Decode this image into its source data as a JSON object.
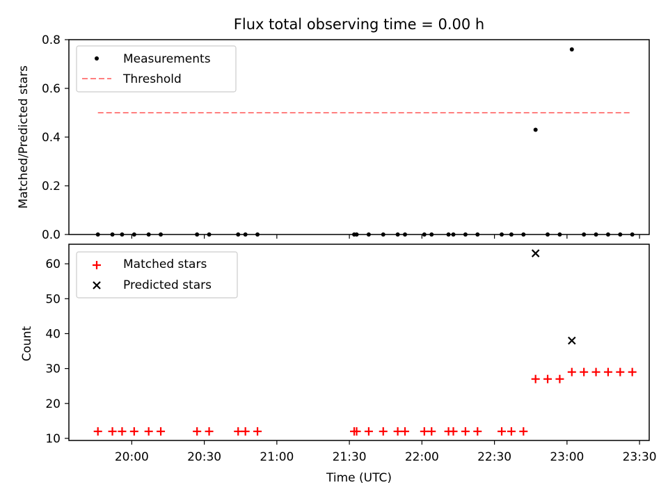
{
  "chart_data": [
    {
      "type": "scatter",
      "title": "Flux total observing time = 0.00 h",
      "xlabel": "",
      "ylabel": "Matched/Predicted stars",
      "ylim": [
        0,
        0.8
      ],
      "yticks": [
        "0.0",
        "0.2",
        "0.4",
        "0.6",
        "0.8"
      ],
      "legend_position": "top-left",
      "series": [
        {
          "name": "Measurements",
          "color": "#000000",
          "marker": "dot",
          "points": [
            [
              "19:46",
              0
            ],
            [
              "19:52",
              0
            ],
            [
              "19:56",
              0
            ],
            [
              "20:01",
              0
            ],
            [
              "20:07",
              0
            ],
            [
              "20:12",
              0
            ],
            [
              "20:27",
              0
            ],
            [
              "20:32",
              0
            ],
            [
              "20:44",
              0
            ],
            [
              "20:47",
              0
            ],
            [
              "20:52",
              0
            ],
            [
              "21:32",
              0
            ],
            [
              "21:33",
              0
            ],
            [
              "21:38",
              0
            ],
            [
              "21:44",
              0
            ],
            [
              "21:50",
              0
            ],
            [
              "21:53",
              0
            ],
            [
              "22:01",
              0
            ],
            [
              "22:04",
              0
            ],
            [
              "22:11",
              0
            ],
            [
              "22:13",
              0
            ],
            [
              "22:18",
              0
            ],
            [
              "22:23",
              0
            ],
            [
              "22:33",
              0
            ],
            [
              "22:37",
              0
            ],
            [
              "22:42",
              0
            ],
            [
              "22:47",
              0.43
            ],
            [
              "22:52",
              0
            ],
            [
              "22:57",
              0
            ],
            [
              "23:02",
              0.76
            ],
            [
              "23:07",
              0
            ],
            [
              "23:12",
              0
            ],
            [
              "23:17",
              0
            ],
            [
              "23:22",
              0
            ],
            [
              "23:27",
              0
            ]
          ]
        },
        {
          "name": "Threshold",
          "color": "#ff7f7f",
          "line": "dashed",
          "x_range": [
            "19:46",
            "23:27"
          ],
          "value": 0.5
        }
      ]
    },
    {
      "type": "scatter",
      "title": "",
      "xlabel": "Time (UTC)",
      "ylabel": "Count",
      "ylim": [
        9.4,
        65.6
      ],
      "xlim": [
        "19:34",
        "23:34"
      ],
      "xticks": [
        "20:00",
        "20:30",
        "21:00",
        "21:30",
        "22:00",
        "22:30",
        "23:00",
        "23:30"
      ],
      "yticks": [
        "10",
        "20",
        "30",
        "40",
        "50",
        "60"
      ],
      "legend_position": "top-left",
      "series": [
        {
          "name": "Matched stars",
          "color": "#ff0000",
          "marker": "plus",
          "points": [
            [
              "19:46",
              12
            ],
            [
              "19:52",
              12
            ],
            [
              "19:56",
              12
            ],
            [
              "20:01",
              12
            ],
            [
              "20:07",
              12
            ],
            [
              "20:12",
              12
            ],
            [
              "20:27",
              12
            ],
            [
              "20:32",
              12
            ],
            [
              "20:44",
              12
            ],
            [
              "20:47",
              12
            ],
            [
              "20:52",
              12
            ],
            [
              "21:32",
              12
            ],
            [
              "21:33",
              12
            ],
            [
              "21:38",
              12
            ],
            [
              "21:44",
              12
            ],
            [
              "21:50",
              12
            ],
            [
              "21:53",
              12
            ],
            [
              "22:01",
              12
            ],
            [
              "22:04",
              12
            ],
            [
              "22:11",
              12
            ],
            [
              "22:13",
              12
            ],
            [
              "22:18",
              12
            ],
            [
              "22:23",
              12
            ],
            [
              "22:33",
              12
            ],
            [
              "22:37",
              12
            ],
            [
              "22:42",
              12
            ],
            [
              "22:47",
              27
            ],
            [
              "22:52",
              27
            ],
            [
              "22:57",
              27
            ],
            [
              "23:02",
              29
            ],
            [
              "23:07",
              29
            ],
            [
              "23:12",
              29
            ],
            [
              "23:17",
              29
            ],
            [
              "23:22",
              29
            ],
            [
              "23:27",
              29
            ]
          ]
        },
        {
          "name": "Predicted stars",
          "color": "#000000",
          "marker": "x",
          "points": [
            [
              "22:47",
              63
            ],
            [
              "23:02",
              38
            ]
          ]
        }
      ]
    }
  ]
}
